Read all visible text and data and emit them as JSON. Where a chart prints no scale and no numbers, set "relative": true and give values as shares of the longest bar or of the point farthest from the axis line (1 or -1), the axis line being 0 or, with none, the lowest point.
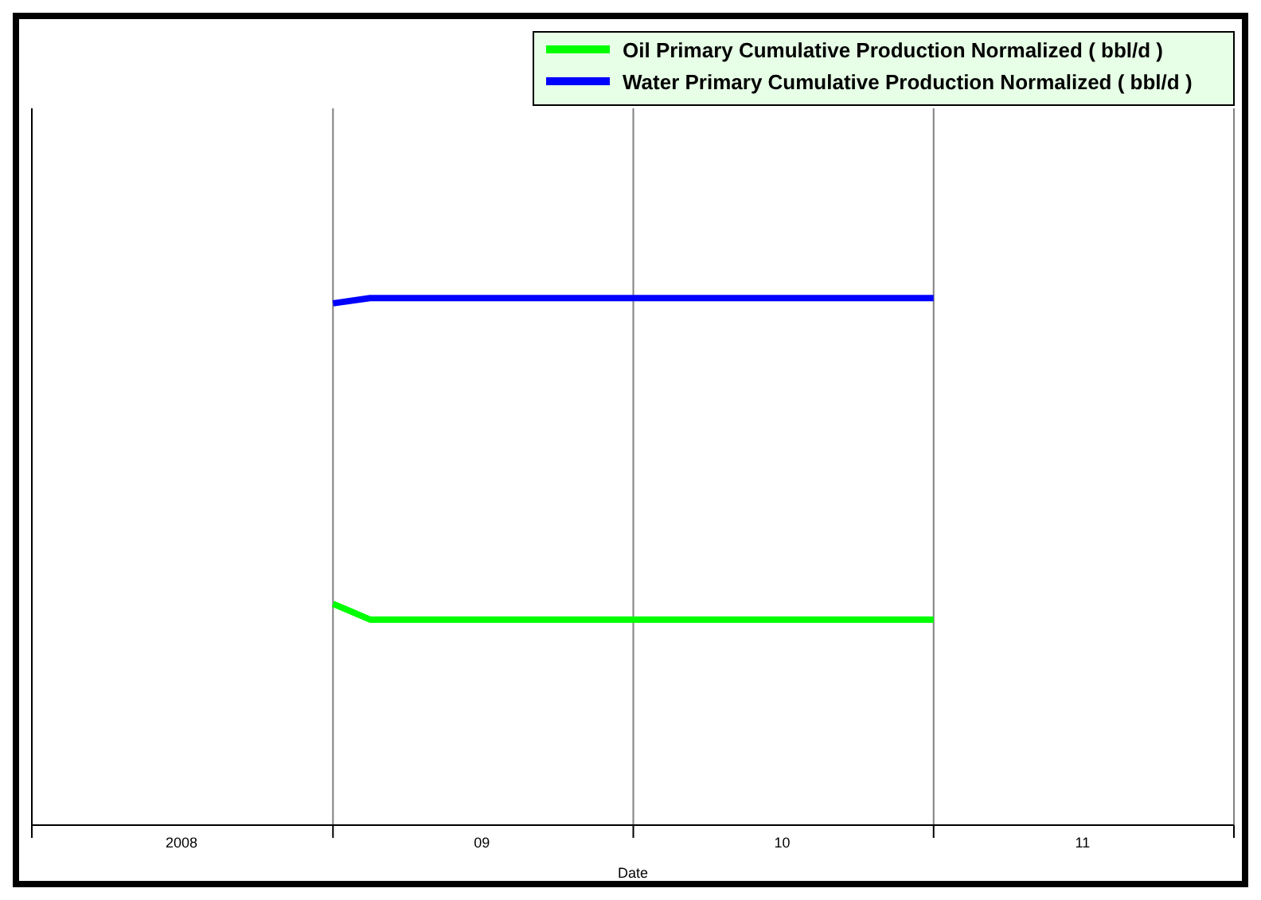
{
  "chart_data": {
    "type": "line",
    "relative": true,
    "xlabel": "Date",
    "legend": "top right",
    "grid": "x",
    "line_style": "solid",
    "xlim": [
      "2008-01-01",
      "2012-01-01"
    ],
    "xticks": [
      {
        "value": "2008-01-01",
        "label": null
      },
      {
        "value": "2008-07-01",
        "label": "2008"
      },
      {
        "value": "2009-01-01",
        "label": null
      },
      {
        "value": "2009-07-01",
        "label": "09"
      },
      {
        "value": "2010-01-01",
        "label": null
      },
      {
        "value": "2010-07-01",
        "label": "10"
      },
      {
        "value": "2011-01-01",
        "label": null
      },
      {
        "value": "2011-07-01",
        "label": "11"
      },
      {
        "value": "2012-01-01",
        "label": null
      }
    ],
    "series": [
      {
        "name": "Oil Primary Cumulative Production Normalized ( bbl/d )",
        "color": "#00ff00",
        "x": [
          "2009-01-01",
          "2009-02-15",
          "2011-01-01"
        ],
        "values": [
          0.42,
          0.39,
          0.39
        ]
      },
      {
        "name": "Water Primary Cumulative Production Normalized ( bbl/d )",
        "color": "#0000ff",
        "x": [
          "2009-01-01",
          "2009-02-15",
          "2011-01-01"
        ],
        "values": [
          0.99,
          1,
          1
        ]
      }
    ]
  }
}
